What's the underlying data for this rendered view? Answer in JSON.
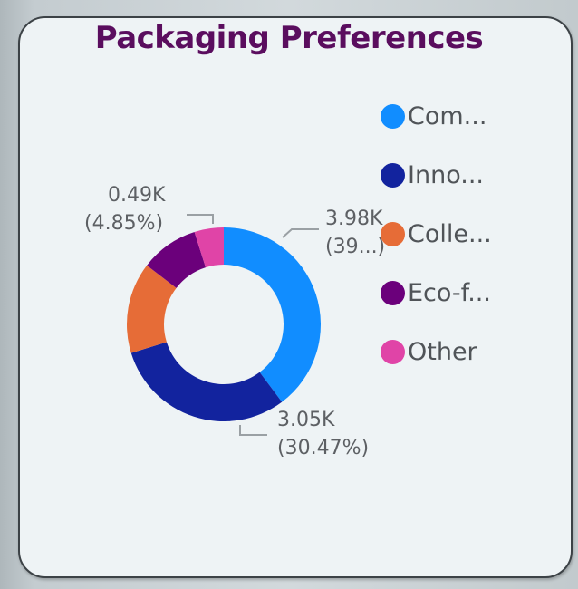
{
  "card": {
    "title": "Packaging Preferences"
  },
  "legend": {
    "items": [
      {
        "label": "Com...",
        "color": "#118dff"
      },
      {
        "label": "Inno...",
        "color": "#12239e"
      },
      {
        "label": "Colle...",
        "color": "#e66c37"
      },
      {
        "label": "Eco-f...",
        "color": "#6b007b"
      },
      {
        "label": "Other",
        "color": "#e044a7"
      }
    ]
  },
  "labels": {
    "com": {
      "value": "3.98K",
      "pct": "(39...)"
    },
    "inno": {
      "value": "3.05K",
      "pct": "(30.47%)"
    },
    "other": {
      "value": "0.49K",
      "pct": "(4.85%)"
    }
  },
  "chart_data": {
    "type": "pie",
    "subtype": "donut",
    "title": "Packaging Preferences",
    "categories": [
      "Com...",
      "Inno...",
      "Colle...",
      "Eco-f...",
      "Other"
    ],
    "values": [
      3.98,
      3.05,
      1.52,
      0.97,
      0.49
    ],
    "units": "K",
    "percentages": [
      39.8,
      30.47,
      15.2,
      9.7,
      4.85
    ],
    "colors": [
      "#118dff",
      "#12239e",
      "#e66c37",
      "#6b007b",
      "#e044a7"
    ],
    "data_labels": [
      {
        "category": "Com...",
        "text": "3.98K (39...)"
      },
      {
        "category": "Inno...",
        "text": "3.05K (30.47%)"
      },
      {
        "category": "Other",
        "text": "0.49K (4.85%)"
      }
    ],
    "legend_position": "right",
    "start_angle": "top, clockwise"
  }
}
